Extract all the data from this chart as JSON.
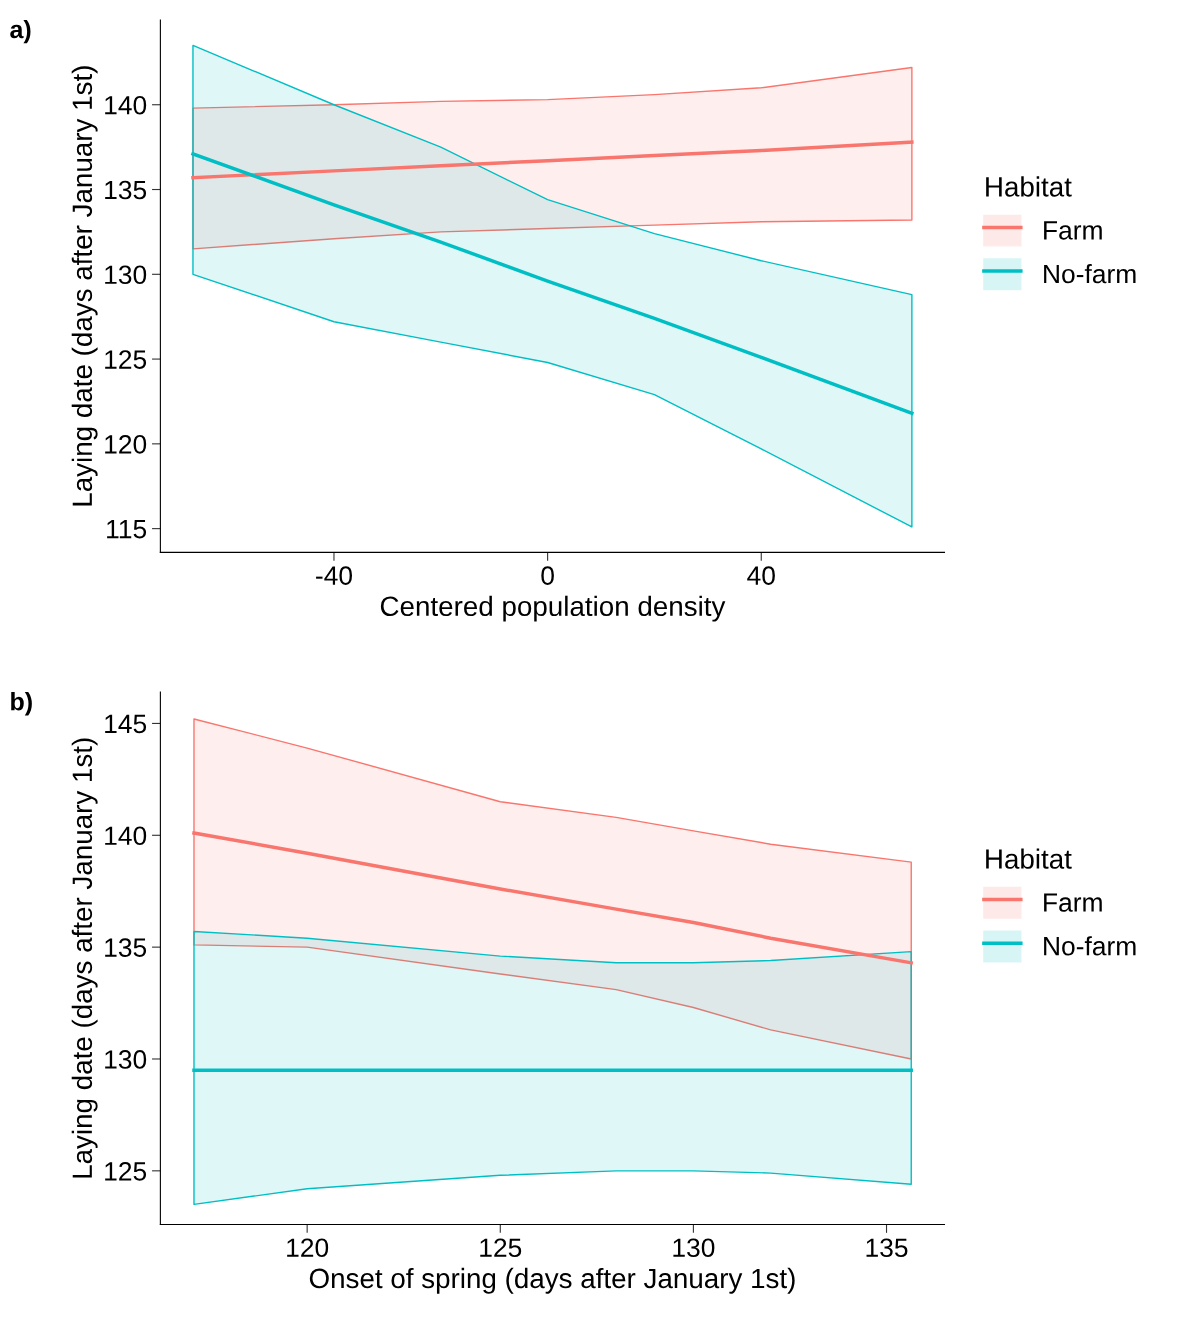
{
  "chart_data": [
    {
      "type": "line",
      "xlabel": "Centered population density",
      "ylabel": "Laying date (days after January 1st)",
      "legend_title": "Habitat",
      "legend": "right",
      "grid": false,
      "annotations": [
        "a)"
      ],
      "xlim": [
        -72.5,
        74.3
      ],
      "xticks": [
        -40,
        0,
        40
      ],
      "ylim": [
        113.6,
        145.0
      ],
      "yticks": [
        115,
        120,
        125,
        130,
        135,
        140
      ],
      "series": [
        {
          "name": "Farm",
          "color": "#f8766d",
          "x": [
            -66.4,
            -40,
            -20,
            0,
            20,
            40,
            68.2
          ],
          "values": [
            135.7,
            136.1,
            136.4,
            136.7,
            137.0,
            137.3,
            137.8
          ],
          "lower": [
            131.5,
            132.1,
            132.5,
            132.7,
            132.9,
            133.1,
            133.2
          ],
          "upper": [
            139.8,
            140.0,
            140.2,
            140.3,
            140.6,
            141.0,
            142.2
          ]
        },
        {
          "name": "No-farm",
          "color": "#00bfc4",
          "x": [
            -66.4,
            -40,
            -20,
            0,
            20,
            40,
            68.2
          ],
          "values": [
            137.1,
            134.1,
            131.9,
            129.6,
            127.4,
            125.1,
            121.8
          ],
          "lower": [
            130.0,
            127.2,
            126.0,
            124.8,
            122.9,
            119.7,
            115.1
          ],
          "upper": [
            143.5,
            140.0,
            137.5,
            134.4,
            132.4,
            130.8,
            128.8
          ]
        }
      ]
    },
    {
      "type": "line",
      "xlabel": "Onset of spring (days after January 1st)",
      "ylabel": "Laying date (days after January 1st)",
      "legend_title": "Habitat",
      "legend": "right",
      "grid": false,
      "annotations": [
        "b)"
      ],
      "xlim": [
        116.2,
        136.5
      ],
      "xticks": [
        120,
        125,
        130,
        135
      ],
      "ylim": [
        122.6,
        146.4
      ],
      "yticks": [
        125,
        130,
        135,
        140,
        145
      ],
      "series": [
        {
          "name": "Farm",
          "color": "#f8766d",
          "x": [
            117.07,
            120,
            125,
            128,
            130,
            132,
            135.64
          ],
          "values": [
            140.1,
            139.2,
            137.6,
            136.7,
            136.1,
            135.4,
            134.3
          ],
          "lower": [
            135.1,
            135.0,
            133.8,
            133.1,
            132.3,
            131.3,
            130.0
          ],
          "upper": [
            145.2,
            143.9,
            141.5,
            140.8,
            140.2,
            139.6,
            138.8
          ]
        },
        {
          "name": "No-farm",
          "color": "#00bfc4",
          "x": [
            117.07,
            120,
            125,
            128,
            130,
            132,
            135.64
          ],
          "values": [
            129.5,
            129.5,
            129.5,
            129.5,
            129.5,
            129.5,
            129.5
          ],
          "lower": [
            123.5,
            124.2,
            124.8,
            125.0,
            125.0,
            124.9,
            124.4
          ],
          "upper": [
            135.7,
            135.4,
            134.6,
            134.3,
            134.3,
            134.4,
            134.8
          ]
        }
      ]
    }
  ]
}
